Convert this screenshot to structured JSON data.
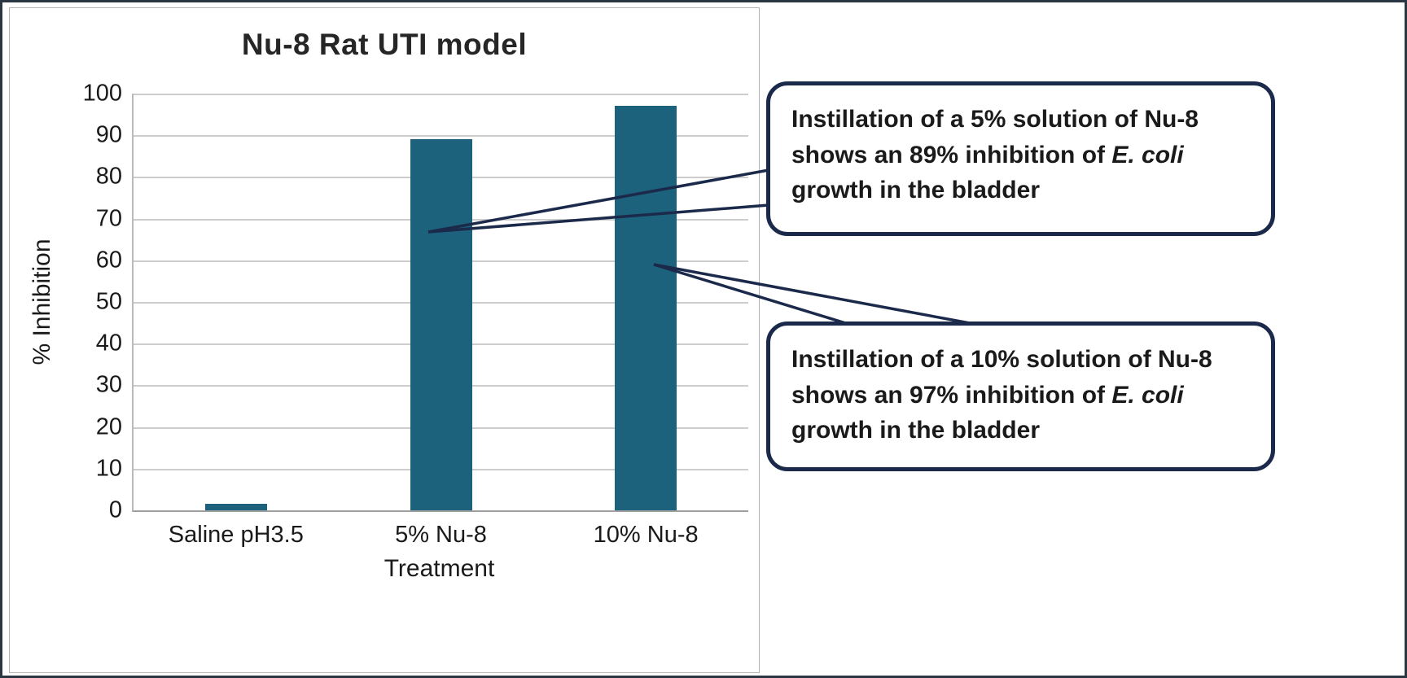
{
  "chart_data": {
    "type": "bar",
    "title": "Nu-8 Rat UTI model",
    "categories": [
      "Saline pH3.5",
      "5% Nu-8",
      "10% Nu-8"
    ],
    "values": [
      1.5,
      89,
      97
    ],
    "xlabel": "Treatment",
    "ylabel": "% Inhibition",
    "ylim": [
      0,
      100
    ],
    "ytick_step": 10,
    "grid": true,
    "legend": "none",
    "bar_color": "#1d627c"
  },
  "callouts": [
    {
      "name": "callout-5-percent",
      "parts": [
        {
          "t": "Instillation of a 5% solution of Nu-8 shows an 89% inhibition of "
        },
        {
          "t": "E. coli",
          "i": true
        },
        {
          "t": " growth in the bladder"
        }
      ]
    },
    {
      "name": "callout-10-percent",
      "parts": [
        {
          "t": "Instillation of a 10% solution of Nu-8 shows an 97% inhibition of "
        },
        {
          "t": "E. coli",
          "i": true
        },
        {
          "t": " growth in the bladder"
        }
      ]
    }
  ],
  "colors": {
    "bar": "#1d627c",
    "callout_border": "#1b2a4a",
    "gridline": "#cdcdcd",
    "axis": "#9f9f9f",
    "text": "#1a1a1a"
  }
}
